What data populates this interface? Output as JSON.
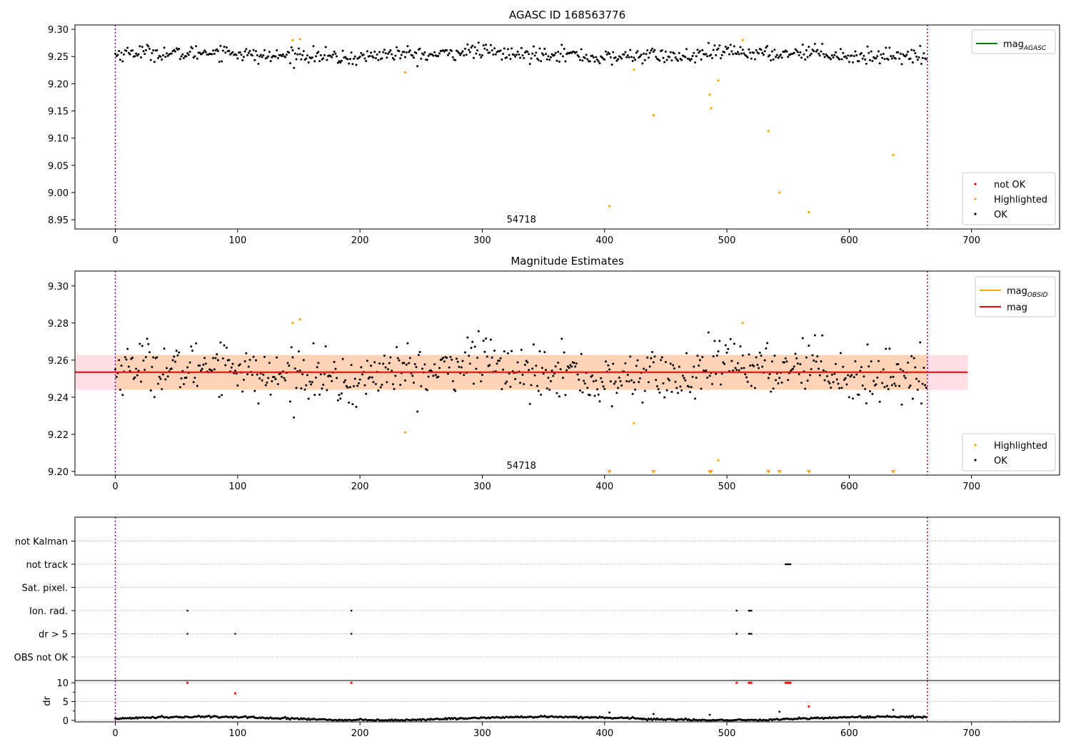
{
  "chart_data": [
    {
      "type": "scatter",
      "title": "AGASC ID 168563776",
      "xlabel": "",
      "ylabel": "",
      "xlim": [
        -33,
        772
      ],
      "ylim": [
        8.933,
        9.308
      ],
      "x_ticks": [
        0,
        100,
        200,
        300,
        400,
        500,
        600,
        700
      ],
      "y_ticks": [
        8.95,
        9.0,
        9.05,
        9.1,
        9.15,
        9.2,
        9.25,
        9.3
      ],
      "obsid_boundaries": [
        0,
        664
      ],
      "obsid_label": {
        "x": 332,
        "text": "54718"
      },
      "series": [
        {
          "name": "not OK",
          "color": "#ff0000",
          "points": []
        },
        {
          "name": "Highlighted",
          "color": "#ffa500",
          "points": [
            [
              145,
              9.28
            ],
            [
              151,
              9.282
            ],
            [
              237,
              9.221
            ],
            [
              424,
              9.226
            ],
            [
              440,
              9.142
            ],
            [
              486,
              9.18
            ],
            [
              487,
              9.155
            ],
            [
              493,
              9.206
            ],
            [
              513,
              9.28
            ],
            [
              534,
              9.113
            ],
            [
              543,
              9.0
            ],
            [
              567,
              8.964
            ],
            [
              636,
              9.069
            ],
            [
              404,
              8.975
            ]
          ]
        },
        {
          "name": "OK",
          "color": "#000000",
          "n_points": 664,
          "x_range": [
            0,
            664
          ],
          "mean": 9.2535,
          "scatter": 0.0085
        }
      ],
      "legend_lines": [
        {
          "label_main": "mag",
          "label_sub": "AGASC",
          "color": "#008000"
        }
      ],
      "legend_markers": [
        "not OK",
        "Highlighted",
        "OK"
      ],
      "legend_positions": {
        "lines": "top-right",
        "markers": "bottom-right"
      }
    },
    {
      "type": "scatter",
      "title": "Magnitude Estimates",
      "xlabel": "",
      "ylabel": "",
      "xlim": [
        -33,
        772
      ],
      "ylim": [
        9.198,
        9.308
      ],
      "x_ticks": [
        0,
        100,
        200,
        300,
        400,
        500,
        600,
        700
      ],
      "y_ticks": [
        9.2,
        9.22,
        9.24,
        9.26,
        9.28,
        9.3
      ],
      "obsid_boundaries": [
        0,
        664
      ],
      "obsid_label": {
        "x": 332,
        "text": "54718"
      },
      "mag_line": {
        "value": 9.2535,
        "color": "#ff0000",
        "x_range": [
          -33,
          697
        ]
      },
      "mag_band": {
        "low": 9.244,
        "high": 9.2628,
        "color": "#ffc0cb"
      },
      "obsid_band": {
        "low": 9.244,
        "high": 9.2628,
        "x_range": [
          0,
          664
        ],
        "color": "#ffa500"
      },
      "offscale_markers_x": [
        404,
        440,
        486,
        487,
        534,
        543,
        567,
        636
      ],
      "series": [
        {
          "name": "Highlighted",
          "color": "#ffa500",
          "points": [
            [
              145,
              9.28
            ],
            [
              151,
              9.282
            ],
            [
              237,
              9.221
            ],
            [
              424,
              9.226
            ],
            [
              493,
              9.206
            ],
            [
              513,
              9.28
            ]
          ]
        },
        {
          "name": "OK",
          "color": "#000000",
          "n_points": 664,
          "x_range": [
            0,
            664
          ],
          "mean": 9.2535,
          "scatter": 0.0085
        }
      ],
      "legend_lines": [
        {
          "label_main": "mag",
          "label_sub": "OBSID",
          "color": "#ffa500"
        },
        {
          "label_main": "mag",
          "label_sub": "",
          "color": "#ff0000"
        }
      ],
      "legend_markers": [
        "Highlighted",
        "OK"
      ],
      "legend_positions": {
        "lines": "top-right",
        "markers": "bottom-right"
      }
    },
    {
      "type": "scatter",
      "title": "",
      "xlabel": "",
      "ylabel": "",
      "xlim": [
        -33,
        772
      ],
      "x_ticks": [
        0,
        100,
        200,
        300,
        400,
        500,
        600,
        700
      ],
      "flag_rows": [
        "OBS not OK",
        "dr > 5",
        "Ion. rad.",
        "Sat. pixel.",
        "not track",
        "not Kalman"
      ],
      "flags": {
        "not Kalman": [],
        "not track": [
          548,
          549,
          550,
          551,
          552
        ],
        "Sat. pixel.": [],
        "Ion. rad.": [
          59,
          193,
          508,
          518,
          519,
          520
        ],
        "dr > 5": [
          59,
          98,
          193,
          508,
          518,
          519,
          520
        ],
        "OBS not OK": []
      },
      "obsid_boundaries": [
        0,
        664
      ]
    },
    {
      "type": "scatter",
      "title": "",
      "xlabel": "",
      "ylabel": "dr",
      "xlim": [
        -33,
        772
      ],
      "ylim": [
        -0.4,
        10.6
      ],
      "x_ticks": [
        0,
        100,
        200,
        300,
        400,
        500,
        600,
        700
      ],
      "y_ticks": [
        0,
        5,
        10
      ],
      "series": [
        {
          "name": "dr",
          "color": "#000000",
          "n_points": 664,
          "x_range": [
            0,
            664
          ],
          "typical": 0.5
        },
        {
          "name": "dr high",
          "color": "#000000",
          "points": [
            [
              404,
              2.1
            ],
            [
              440,
              1.7
            ],
            [
              486,
              1.5
            ],
            [
              543,
              2.3
            ],
            [
              636,
              2.8
            ]
          ]
        },
        {
          "name": "dr flagged",
          "color": "#ff0000",
          "points": [
            [
              59,
              10
            ],
            [
              98,
              7.2
            ],
            [
              193,
              10
            ],
            [
              508,
              10
            ],
            [
              518,
              10
            ],
            [
              519,
              10
            ],
            [
              520,
              10
            ],
            [
              548,
              10
            ],
            [
              549,
              10
            ],
            [
              550,
              10
            ],
            [
              551,
              10
            ],
            [
              552,
              10
            ],
            [
              567,
              3.7
            ]
          ]
        }
      ],
      "obsid_boundaries": [
        0,
        664
      ]
    }
  ]
}
